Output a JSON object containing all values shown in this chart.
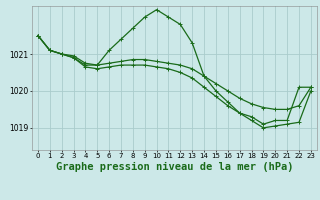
{
  "background_color": "#cce8e8",
  "grid_color": "#aacccc",
  "line_color": "#1a6b1a",
  "title": "Graphe pression niveau de la mer (hPa)",
  "xlim": [
    -0.5,
    23.5
  ],
  "ylim": [
    1018.4,
    1022.3
  ],
  "yticks": [
    1019,
    1020,
    1021
  ],
  "xticks": [
    0,
    1,
    2,
    3,
    4,
    5,
    6,
    7,
    8,
    9,
    10,
    11,
    12,
    13,
    14,
    15,
    16,
    17,
    18,
    19,
    20,
    21,
    22,
    23
  ],
  "series": [
    {
      "x": [
        0,
        1,
        2,
        3,
        4,
        5,
        6,
        7,
        8,
        9,
        10,
        11,
        12,
        13,
        14,
        15,
        16,
        17,
        18,
        19,
        20,
        21,
        22,
        23
      ],
      "y": [
        1021.5,
        1021.1,
        1021.0,
        1020.9,
        1020.7,
        1020.7,
        1021.1,
        1021.4,
        1021.7,
        1022.0,
        1022.2,
        1022.0,
        1021.8,
        1021.3,
        1020.4,
        1020.0,
        1019.7,
        1019.4,
        1019.3,
        1019.1,
        1019.2,
        1019.2,
        1020.1,
        1020.1
      ]
    },
    {
      "x": [
        0,
        1,
        2,
        3,
        4,
        5,
        6,
        7,
        8,
        9,
        10,
        11,
        12,
        13,
        14,
        15,
        16,
        17,
        18,
        19,
        20,
        21,
        22,
        23
      ],
      "y": [
        1021.5,
        1021.1,
        1021.0,
        1020.95,
        1020.75,
        1020.7,
        1020.75,
        1020.8,
        1020.85,
        1020.85,
        1020.8,
        1020.75,
        1020.7,
        1020.6,
        1020.4,
        1020.2,
        1020.0,
        1019.8,
        1019.65,
        1019.55,
        1019.5,
        1019.5,
        1019.6,
        1020.1
      ]
    },
    {
      "x": [
        0,
        1,
        2,
        3,
        4,
        5,
        6,
        7,
        8,
        9,
        10,
        11,
        12,
        13,
        14,
        15,
        16,
        17,
        18,
        19,
        20,
        21,
        22,
        23
      ],
      "y": [
        1021.5,
        1021.1,
        1021.0,
        1020.9,
        1020.65,
        1020.6,
        1020.65,
        1020.7,
        1020.7,
        1020.7,
        1020.65,
        1020.6,
        1020.5,
        1020.35,
        1020.1,
        1019.85,
        1019.6,
        1019.4,
        1019.2,
        1019.0,
        1019.05,
        1019.1,
        1019.15,
        1020.0
      ]
    }
  ],
  "linewidth": 0.9,
  "markersize": 2.5,
  "title_fontsize": 7.5,
  "tick_fontsize": 5.5
}
